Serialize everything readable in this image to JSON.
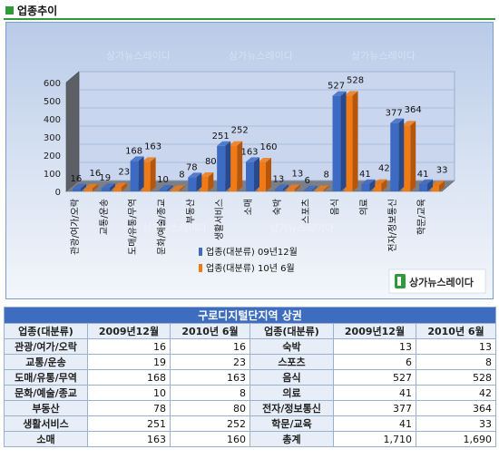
{
  "header": {
    "title": "업종추이"
  },
  "watermark": {
    "text": "상가뉴스레이다"
  },
  "logo": {
    "text": "상가뉴스레이다"
  },
  "chart_data": {
    "type": "bar",
    "title": "",
    "xlabel": "",
    "ylabel": "",
    "ylim": [
      0,
      600
    ],
    "yticks": [
      0,
      100,
      200,
      300,
      400,
      500,
      600
    ],
    "categories": [
      "관광/여가/오락",
      "교통/운송",
      "도매/유통/무역",
      "문화/예술/종교",
      "부동산",
      "생활서비스",
      "소매",
      "숙박",
      "스포츠",
      "음식",
      "의료",
      "전자/정보통신",
      "학문/교육"
    ],
    "series": [
      {
        "name": "업종(대분류) 09년12월",
        "color": "#3d6bc4",
        "values": [
          16,
          19,
          168,
          10,
          78,
          251,
          163,
          13,
          6,
          527,
          41,
          377,
          41
        ]
      },
      {
        "name": "업종(대분류) 10년 6월",
        "color": "#f07a16",
        "values": [
          16,
          23,
          163,
          8,
          80,
          252,
          160,
          13,
          8,
          528,
          42,
          364,
          33
        ]
      }
    ],
    "legend": "bottom-center",
    "grid": true
  },
  "table": {
    "title": "구로디지털단지역 상권",
    "headers": [
      "업종(대분류)",
      "2009년12월",
      "2010년 6월",
      "업종(대분류)",
      "2009년12월",
      "2010년 6월"
    ],
    "rows": [
      {
        "c1": "관광/여가/오락",
        "a1": "16",
        "b1": "16",
        "c2": "숙박",
        "a2": "13",
        "b2": "13"
      },
      {
        "c1": "교통/운송",
        "a1": "19",
        "b1": "23",
        "c2": "스포츠",
        "a2": "6",
        "b2": "8"
      },
      {
        "c1": "도매/유통/무역",
        "a1": "168",
        "b1": "163",
        "c2": "음식",
        "a2": "527",
        "b2": "528"
      },
      {
        "c1": "문화/예술/종교",
        "a1": "10",
        "b1": "8",
        "c2": "의료",
        "a2": "41",
        "b2": "42"
      },
      {
        "c1": "부동산",
        "a1": "78",
        "b1": "80",
        "c2": "전자/정보통신",
        "a2": "377",
        "b2": "364"
      },
      {
        "c1": "생활서비스",
        "a1": "251",
        "b1": "252",
        "c2": "학문/교육",
        "a2": "41",
        "b2": "33"
      },
      {
        "c1": "소매",
        "a1": "163",
        "b1": "160",
        "c2": "총계",
        "a2": "1,710",
        "b2": "1,690"
      }
    ]
  }
}
